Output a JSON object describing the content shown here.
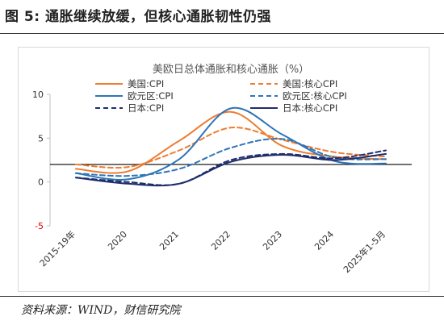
{
  "figure": {
    "label": "图 5:",
    "title": "通胀继续放缓，但核心通胀韧性仍强",
    "source": "资料来源：WIND，财信研究院"
  },
  "chart_data": {
    "type": "line",
    "title": "美欧日总体通胀和核心通胀（%）",
    "xlabel": "",
    "ylabel": "",
    "categories": [
      "2015-19年",
      "2020",
      "2021",
      "2022",
      "2023",
      "2024",
      "2025年1-5月"
    ],
    "ylim": [
      -5,
      10
    ],
    "yticks": [
      -5,
      0,
      5,
      10
    ],
    "reference_line_y": 2,
    "grid": false,
    "legend_placement": "top",
    "series": [
      {
        "name": "美国:CPI",
        "color": "#ed7d31",
        "dash": "solid",
        "values": [
          1.5,
          1.2,
          4.7,
          8.0,
          4.1,
          2.9,
          2.6
        ]
      },
      {
        "name": "美国:核心CPI",
        "color": "#ed7d31",
        "dash": "dashed",
        "values": [
          2.0,
          1.7,
          3.6,
          6.2,
          4.8,
          3.4,
          2.9
        ]
      },
      {
        "name": "欧元区:CPI",
        "color": "#2e75b6",
        "dash": "solid",
        "values": [
          1.0,
          0.3,
          2.6,
          8.4,
          5.4,
          2.4,
          2.1
        ]
      },
      {
        "name": "欧元区:核心CPI",
        "color": "#2e75b6",
        "dash": "dashed",
        "values": [
          1.0,
          0.7,
          1.5,
          3.9,
          4.9,
          2.8,
          2.6
        ]
      },
      {
        "name": "日本:CPI",
        "color": "#1f2d6b",
        "dash": "dashed",
        "values": [
          0.5,
          0.0,
          -0.2,
          2.5,
          3.2,
          2.7,
          3.6
        ]
      },
      {
        "name": "日本:核心CPI",
        "color": "#1f2d6b",
        "dash": "solid",
        "values": [
          0.5,
          -0.2,
          -0.2,
          2.3,
          3.1,
          2.5,
          3.2
        ]
      }
    ]
  }
}
